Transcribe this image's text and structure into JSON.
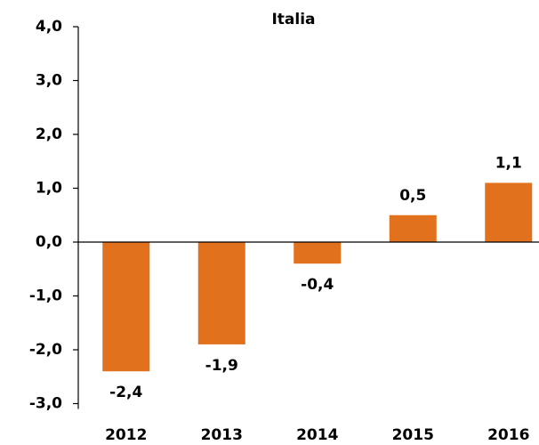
{
  "chart_data": {
    "type": "bar",
    "title": "Italia",
    "categories": [
      "2012",
      "2013",
      "2014",
      "2015",
      "2016"
    ],
    "values": [
      -2.4,
      -1.9,
      -0.4,
      0.5,
      1.1
    ],
    "value_labels": [
      "-2,4",
      "-1,9",
      "-0,4",
      "0,5",
      "1,1"
    ],
    "color": "#e2711d",
    "ylim": [
      -3,
      4
    ],
    "yticks": [
      {
        "value": -3,
        "label": "-3,0"
      },
      {
        "value": -2,
        "label": "-2,0"
      },
      {
        "value": -1,
        "label": "-1,0"
      },
      {
        "value": 0,
        "label": "0,0"
      },
      {
        "value": 1,
        "label": "1,0"
      },
      {
        "value": 2,
        "label": "2,0"
      },
      {
        "value": 3,
        "label": "3,0"
      },
      {
        "value": 4,
        "label": "4,0"
      }
    ],
    "grid": false
  }
}
